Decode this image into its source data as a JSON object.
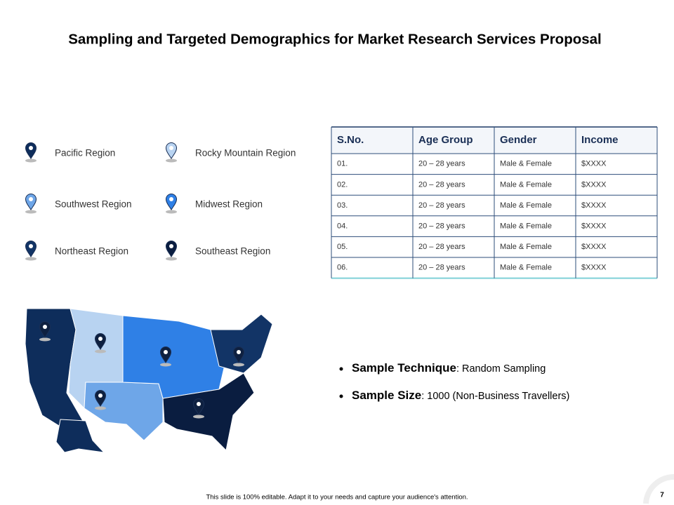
{
  "title": "Sampling and Targeted Demographics for Market Research Services Proposal",
  "regions": [
    {
      "label": "Pacific Region",
      "color": "#0e2d5b"
    },
    {
      "label": "Rocky Mountain Region",
      "color": "#b8d3f1"
    },
    {
      "label": "Southwest Region",
      "color": "#6ea6e8"
    },
    {
      "label": "Midwest Region",
      "color": "#2f80e6"
    },
    {
      "label": "Northeast Region",
      "color": "#123466"
    },
    {
      "label": "Southeast Region",
      "color": "#0a1d40"
    }
  ],
  "table": {
    "headers": [
      "S.No.",
      "Age Group",
      "Gender",
      "Income"
    ],
    "rows": [
      [
        "01.",
        "20 – 28 years",
        "Male & Female",
        "$XXXX"
      ],
      [
        "02.",
        "20 – 28 years",
        "Male & Female",
        "$XXXX"
      ],
      [
        "03.",
        "20 – 28 years",
        "Male & Female",
        "$XXXX"
      ],
      [
        "04.",
        "20 – 28 years",
        "Male & Female",
        "$XXXX"
      ],
      [
        "05.",
        "20 – 28 years",
        "Male & Female",
        "$XXXX"
      ],
      [
        "06.",
        "20 – 28 years",
        "Male & Female",
        "$XXXX"
      ]
    ]
  },
  "bullets": [
    {
      "label": "Sample Technique",
      "text": ": Random Sampling"
    },
    {
      "label": "Sample Size",
      "text": ": 1000 (Non-Business Travellers)"
    }
  ],
  "footer": "This slide is 100% editable. Adapt it to your needs and capture your audience's attention.",
  "page_number": "7"
}
